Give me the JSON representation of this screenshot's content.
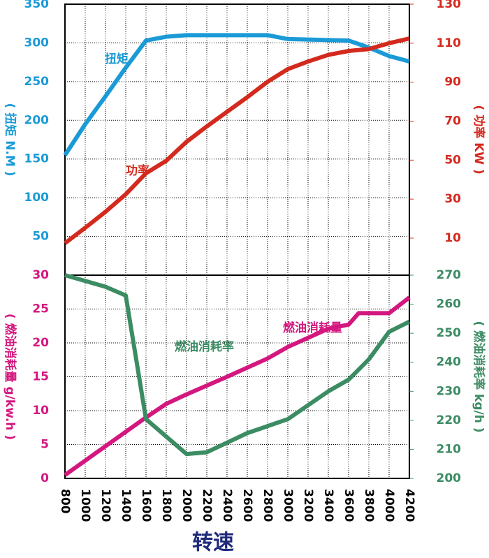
{
  "chart_data": [
    {
      "type": "line",
      "xlim": [
        800,
        4200
      ],
      "ylim": [
        0,
        350
      ],
      "yticks": [
        50,
        100,
        150,
        200,
        250,
        300,
        350
      ],
      "ylabel": "( 扭矩 N.M )",
      "ycolor": "#1a9ad6",
      "y2lim": [
        -9,
        130
      ],
      "y2ticks": [
        10,
        30,
        50,
        70,
        90,
        110,
        130
      ],
      "y2label": "( 功率 KW )",
      "y2color": "#d42a1e",
      "grid": true,
      "series": [
        {
          "name": "扭矩",
          "color": "#1a9ad6",
          "axis": "y",
          "x": [
            800,
            1000,
            1200,
            1400,
            1600,
            1800,
            2000,
            2800,
            3000,
            3600,
            3800,
            4000,
            4200
          ],
          "values": [
            155,
            195,
            231,
            268,
            303,
            308,
            310,
            310,
            305,
            303,
            294,
            283,
            276
          ]
        },
        {
          "name": "功率",
          "color": "#d42a1e",
          "axis": "y2",
          "x": [
            800,
            1000,
            1200,
            1400,
            1600,
            1800,
            2000,
            2200,
            2400,
            2600,
            2800,
            3000,
            3200,
            3400,
            3600,
            3800,
            4000,
            4200
          ],
          "values": [
            7.4,
            15.3,
            23.5,
            32.5,
            43.3,
            49.7,
            59.4,
            67.3,
            74.8,
            82.3,
            90.2,
            96.7,
            100.6,
            104,
            106,
            107,
            110,
            112.4
          ]
        }
      ]
    },
    {
      "type": "line",
      "xlim": [
        800,
        4200
      ],
      "xticks": [
        800,
        1000,
        1200,
        1400,
        1600,
        1800,
        2000,
        2200,
        2400,
        2600,
        2800,
        3000,
        3200,
        3400,
        3600,
        3800,
        4000,
        4200
      ],
      "xlabel": "转速",
      "ylim": [
        0,
        30
      ],
      "yticks": [
        0,
        5,
        10,
        15,
        20,
        25,
        30
      ],
      "ylabel": "( 燃油消耗量 g/kw.h )",
      "ycolor": "#d4177f",
      "y2lim": [
        200,
        270
      ],
      "y2ticks": [
        200,
        210,
        220,
        230,
        240,
        250,
        260,
        270
      ],
      "y2label": "( 燃油消耗率 kg/h )",
      "y2color": "#3c8c63",
      "grid": true,
      "series": [
        {
          "name": "燃油消耗量",
          "color": "#d4177f",
          "axis": "y",
          "x": [
            800,
            1600,
            1800,
            2000,
            2400,
            2800,
            3000,
            3400,
            3600,
            3700,
            4000,
            4200
          ],
          "values": [
            0.5,
            9,
            11,
            12.4,
            15,
            17.7,
            19.4,
            22.1,
            22.7,
            24.4,
            24.4,
            26.7
          ]
        },
        {
          "name": "燃油消耗率",
          "color": "#3c8c63",
          "axis": "y2",
          "x": [
            800,
            1200,
            1400,
            1600,
            2000,
            2200,
            2600,
            3000,
            3400,
            3600,
            3800,
            4000,
            4200
          ],
          "values": [
            270,
            266,
            263,
            220.4,
            208.4,
            209,
            215.6,
            220.4,
            230,
            234,
            241,
            250.5,
            254
          ]
        }
      ]
    }
  ]
}
